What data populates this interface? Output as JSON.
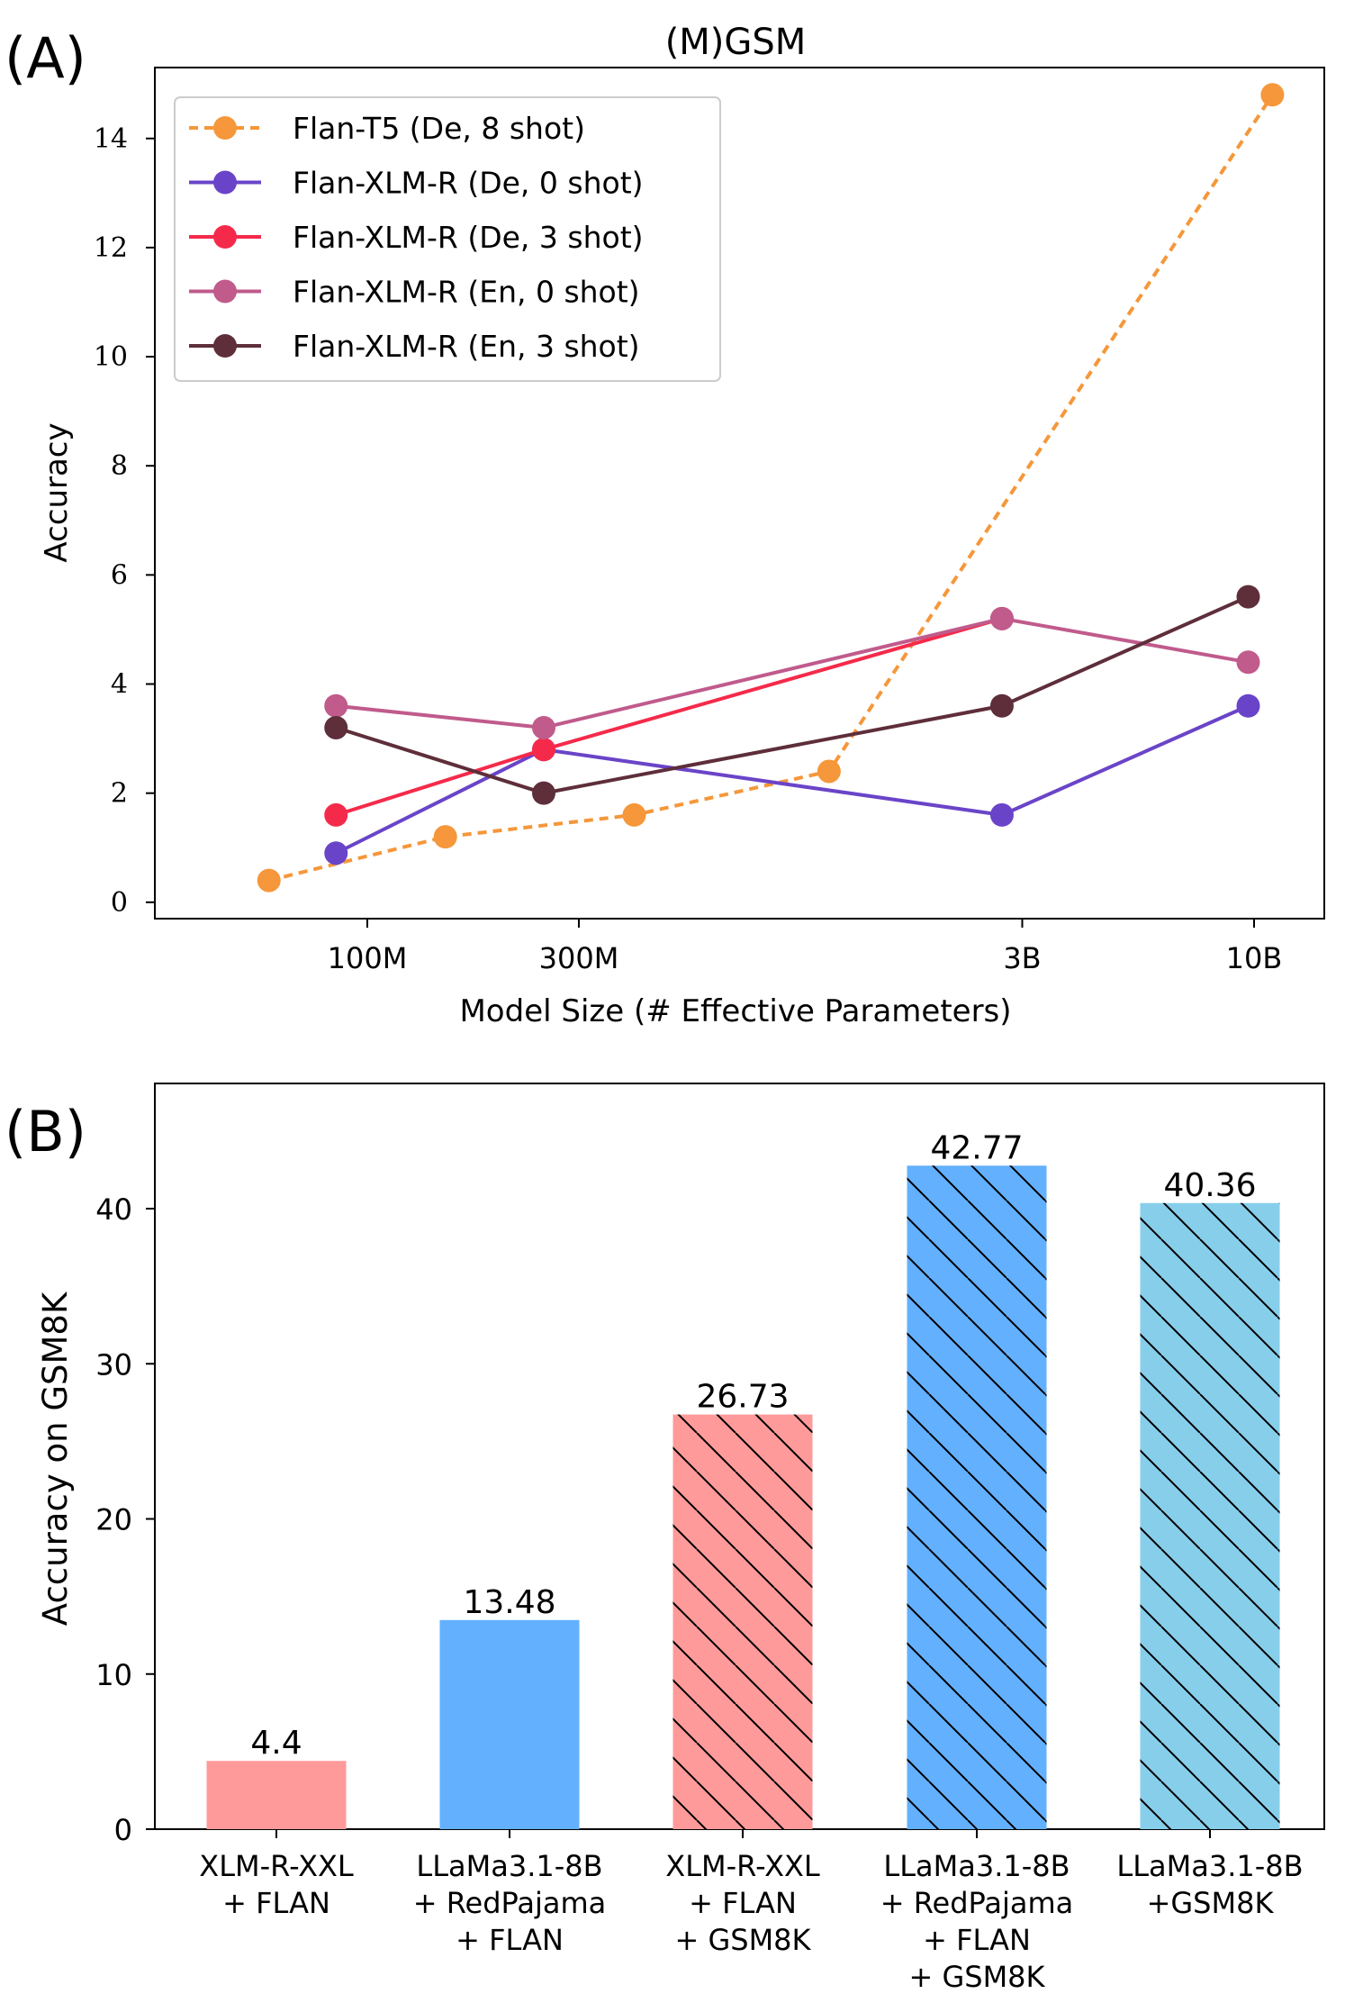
{
  "chart_data": [
    {
      "panel": "(A)",
      "type": "line",
      "title": "(M)GSM",
      "xlabel": "Model Size (# Effective Parameters)",
      "ylabel": "Accuracy",
      "xscale": "log",
      "xticks": [
        {
          "value": 100,
          "label": "100M"
        },
        {
          "value": 300,
          "label": "300M"
        },
        {
          "value": 3000,
          "label": "3B"
        },
        {
          "value": 10000,
          "label": "10B"
        }
      ],
      "yticks": [
        "0",
        "2",
        "4",
        "6",
        "8",
        "10",
        "12",
        "14"
      ],
      "ylim": [
        -0.3,
        15.3
      ],
      "legend_position": "top-left",
      "series": [
        {
          "name": "Flan-T5 (De, 8 shot)",
          "color": "#F5973A",
          "style": "dashed",
          "x": [
            60,
            150,
            400,
            1100,
            11000
          ],
          "y": [
            0.4,
            1.2,
            1.6,
            2.4,
            14.8
          ]
        },
        {
          "name": "Flan-XLM-R (De, 0 shot)",
          "color": "#6A44C8",
          "style": "solid",
          "x": [
            85,
            250,
            2700,
            9700
          ],
          "y": [
            0.9,
            2.8,
            1.6,
            3.6
          ]
        },
        {
          "name": "Flan-XLM-R (De, 3 shot)",
          "color": "#F52A4A",
          "style": "solid",
          "x": [
            85,
            250,
            2700
          ],
          "y": [
            1.6,
            2.8,
            5.2
          ]
        },
        {
          "name": "Flan-XLM-R (En, 0 shot)",
          "color": "#C05B8C",
          "style": "solid",
          "x": [
            85,
            250,
            2700,
            9700
          ],
          "y": [
            3.6,
            3.2,
            5.2,
            4.4
          ]
        },
        {
          "name": "Flan-XLM-R (En, 3 shot)",
          "color": "#5E2E3A",
          "style": "solid",
          "x": [
            85,
            250,
            2700,
            9700
          ],
          "y": [
            3.2,
            2.0,
            3.6,
            5.6
          ]
        }
      ]
    },
    {
      "panel": "(B)",
      "type": "bar",
      "title": "",
      "xlabel": "",
      "ylabel": "Accuracy on GSM8K",
      "ylim": [
        0,
        45
      ],
      "yticks": [
        "0",
        "10",
        "20",
        "30",
        "40"
      ],
      "categories": [
        [
          "XLM-R-XXL",
          "+ FLAN"
        ],
        [
          "LLaMa3.1-8B",
          "+ RedPajama",
          "+ FLAN"
        ],
        [
          "XLM-R-XXL",
          "+ FLAN",
          "+ GSM8K"
        ],
        [
          "LLaMa3.1-8B",
          "+ RedPajama",
          "+ FLAN",
          "+ GSM8K"
        ],
        [
          "LLaMa3.1-8B",
          "+GSM8K"
        ]
      ],
      "values": [
        4.4,
        13.48,
        26.73,
        42.77,
        40.36
      ],
      "value_labels": [
        "4.4",
        "13.48",
        "26.73",
        "42.77",
        "40.36"
      ],
      "colors": [
        "#FF9A9A",
        "#63B0FF",
        "#FF9A9A",
        "#63B0FF",
        "#87CEEB"
      ],
      "hatched": [
        false,
        false,
        true,
        true,
        true
      ]
    }
  ]
}
